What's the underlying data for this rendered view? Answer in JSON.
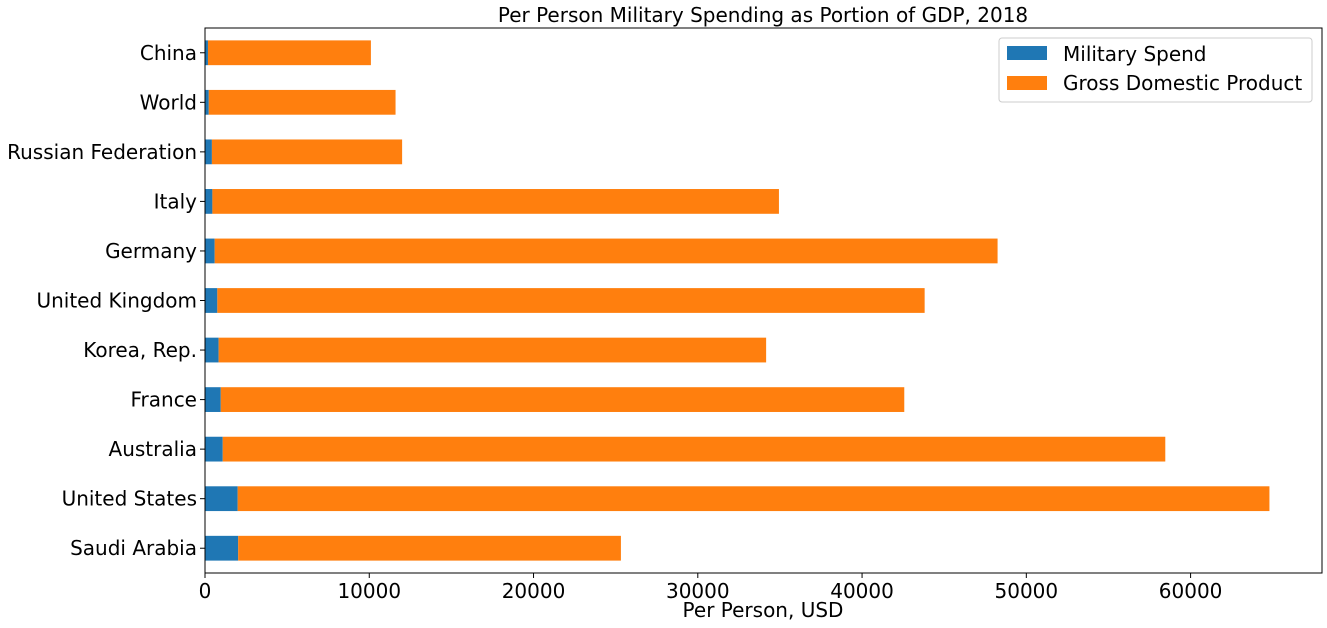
{
  "chart_data": {
    "type": "bar",
    "orientation": "horizontal",
    "stacked": true,
    "title": "Per Person Military Spending as Portion of GDP, 2018",
    "xlabel": "Per Person, USD",
    "ylabel": "",
    "xlim": [
      0,
      68000
    ],
    "xticks": [
      0,
      10000,
      20000,
      30000,
      40000,
      50000,
      60000
    ],
    "xtick_labels": [
      "0",
      "10000",
      "20000",
      "30000",
      "40000",
      "50000",
      "60000"
    ],
    "categories": [
      "China",
      "World",
      "Russian Federation",
      "Italy",
      "Germany",
      "United Kingdom",
      "Korea, Rep.",
      "France",
      "Australia",
      "United States",
      "Saudi Arabia"
    ],
    "series": [
      {
        "name": "Military Spend",
        "color": "#1f77b4",
        "values": [
          180,
          230,
          420,
          450,
          590,
          750,
          830,
          960,
          1080,
          1990,
          2020
        ]
      },
      {
        "name": "Gross Domestic Product",
        "color": "#ff7f0e",
        "values": [
          9920,
          11370,
          11580,
          34490,
          47660,
          43060,
          33330,
          41610,
          57380,
          62810,
          23300
        ]
      }
    ],
    "grid": false,
    "legend_position": "upper right"
  }
}
